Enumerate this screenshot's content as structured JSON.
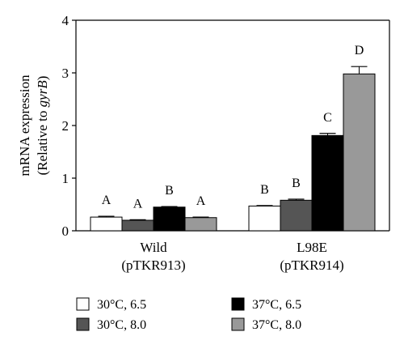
{
  "chart_data": {
    "type": "bar",
    "ylabel_line1": "mRNA expression",
    "ylabel_line2_prefix": "(Relative to ",
    "ylabel_line2_italic": "gyrB",
    "ylabel_line2_suffix": ")",
    "ylim": [
      0,
      4
    ],
    "yticks": [
      "0",
      "1",
      "2",
      "3",
      "4"
    ],
    "groups": [
      {
        "name": "Wild",
        "sub": "(pTKR913)"
      },
      {
        "name": "L98E",
        "sub": "(pTKR914)"
      }
    ],
    "series": [
      {
        "name": "30°C, 6.5",
        "color": "#ffffff",
        "values": [
          0.26,
          0.47
        ],
        "errors": [
          0.015,
          0.01
        ],
        "letters": [
          "A",
          "B"
        ]
      },
      {
        "name": "30°C, 8.0",
        "color": "#555555",
        "values": [
          0.2,
          0.58
        ],
        "errors": [
          0.01,
          0.02
        ],
        "letters": [
          "A",
          "B"
        ]
      },
      {
        "name": "37°C, 6.5",
        "color": "#000000",
        "values": [
          0.45,
          1.81
        ],
        "errors": [
          0.01,
          0.04
        ],
        "letters": [
          "B",
          "C"
        ]
      },
      {
        "name": "37°C, 8.0",
        "color": "#999999",
        "values": [
          0.25,
          2.98
        ],
        "errors": [
          0.01,
          0.14
        ],
        "letters": [
          "A",
          "D"
        ]
      }
    ],
    "legend_placement": "bottom",
    "grid": false
  }
}
